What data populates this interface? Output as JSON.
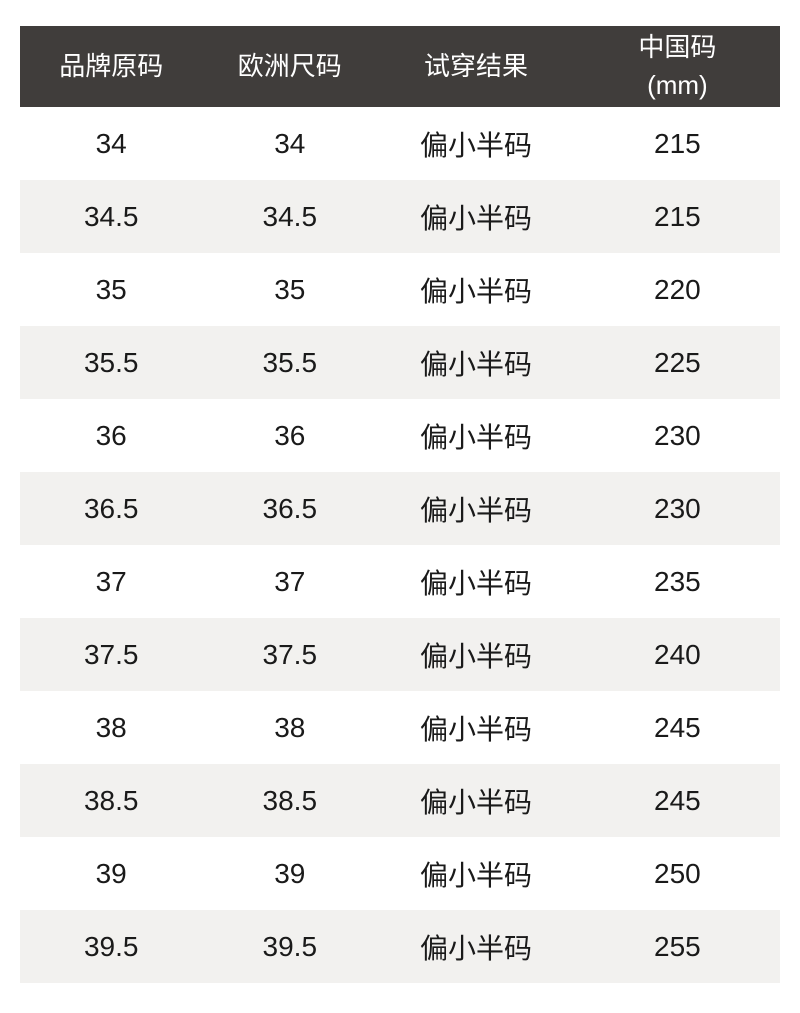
{
  "table": {
    "columns": [
      {
        "label": "品牌原码"
      },
      {
        "label": "欧洲尺码"
      },
      {
        "label": "试穿结果"
      },
      {
        "label": "中国码",
        "sub": "(mm)"
      }
    ],
    "rows": [
      [
        "34",
        "34",
        "偏小半码",
        "215"
      ],
      [
        "34.5",
        "34.5",
        "偏小半码",
        "215"
      ],
      [
        "35",
        "35",
        "偏小半码",
        "220"
      ],
      [
        "35.5",
        "35.5",
        "偏小半码",
        "225"
      ],
      [
        "36",
        "36",
        "偏小半码",
        "230"
      ],
      [
        "36.5",
        "36.5",
        "偏小半码",
        "230"
      ],
      [
        "37",
        "37",
        "偏小半码",
        "235"
      ],
      [
        "37.5",
        "37.5",
        "偏小半码",
        "240"
      ],
      [
        "38",
        "38",
        "偏小半码",
        "245"
      ],
      [
        "38.5",
        "38.5",
        "偏小半码",
        "245"
      ],
      [
        "39",
        "39",
        "偏小半码",
        "250"
      ],
      [
        "39.5",
        "39.5",
        "偏小半码",
        "255"
      ]
    ]
  },
  "colors": {
    "header_bg": "#403d3b",
    "stripe_bg": "#f2f1ef",
    "text": "#1a1a1a",
    "header_text": "#ffffff"
  }
}
